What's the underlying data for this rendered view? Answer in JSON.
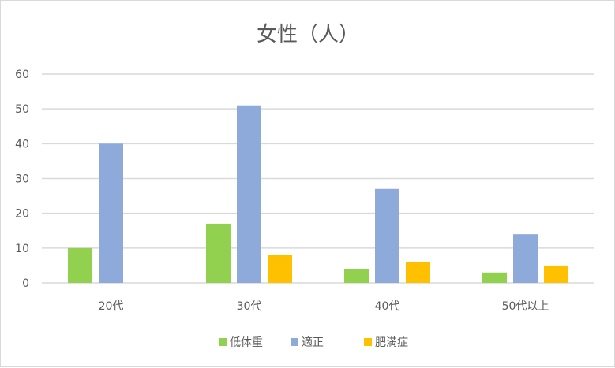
{
  "chart_data": {
    "type": "bar",
    "title": "女性（人）",
    "categories": [
      "20代",
      "30代",
      "40代",
      "50代以上"
    ],
    "series": [
      {
        "name": "低体重",
        "color": "#92d050",
        "values": [
          10,
          17,
          4,
          3
        ]
      },
      {
        "name": "適正",
        "color": "#8eaadb",
        "values": [
          40,
          51,
          27,
          14
        ]
      },
      {
        "name": "肥満症",
        "color": "#ffc000",
        "values": [
          0,
          8,
          6,
          5
        ]
      }
    ],
    "ylim": [
      0,
      60
    ],
    "yticks": [
      0,
      10,
      20,
      30,
      40,
      50,
      60
    ],
    "grid": true,
    "legend": "bottom",
    "xlabel": "",
    "ylabel": ""
  }
}
